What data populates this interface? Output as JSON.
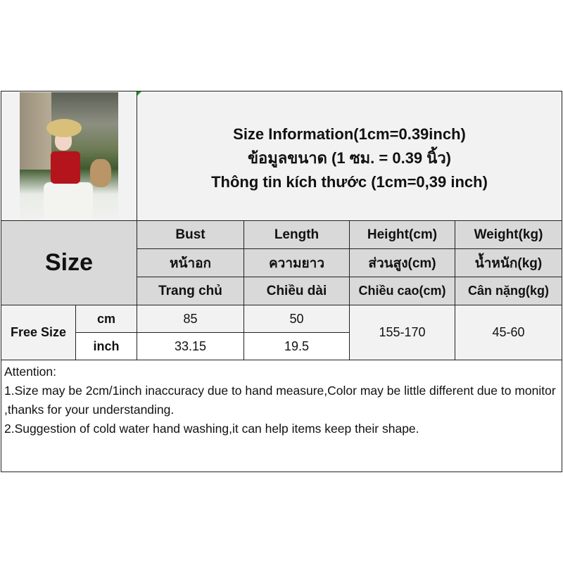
{
  "title": {
    "line1": "Size Information(1cm=0.39inch)",
    "line2": "ข้อมูลขนาด (1 ซม. = 0.39 นิ้ว)",
    "line3": "Thông tin kích thước (1cm=0,39 inch)"
  },
  "size_label": "Size",
  "headers": [
    {
      "en": "Bust",
      "th": "หน้าอก",
      "vi": "Trang chủ"
    },
    {
      "en": "Length",
      "th": "ความยาว",
      "vi": "Chiều dài"
    },
    {
      "en": "Height(cm)",
      "th": "ส่วนสูง(cm)",
      "vi": "Chiều cao(cm)"
    },
    {
      "en": "Weight(kg)",
      "th": "น้ำหนัก(kg)",
      "vi": "Cân nặng(kg)"
    }
  ],
  "row": {
    "size": "Free Size",
    "units": [
      "cm",
      "inch"
    ],
    "bust": [
      "85",
      "33.15"
    ],
    "length": [
      "50",
      "19.5"
    ],
    "height": "155-170",
    "weight": "45-60"
  },
  "attention": {
    "heading": "Attention:",
    "line1": "1.Size may be 2cm/1inch inaccuracy due to hand measure,Color may be little different due to monitor ,thanks for your understanding.",
    "line2": "2.Suggestion of cold water hand washing,it can help items keep their shape."
  }
}
